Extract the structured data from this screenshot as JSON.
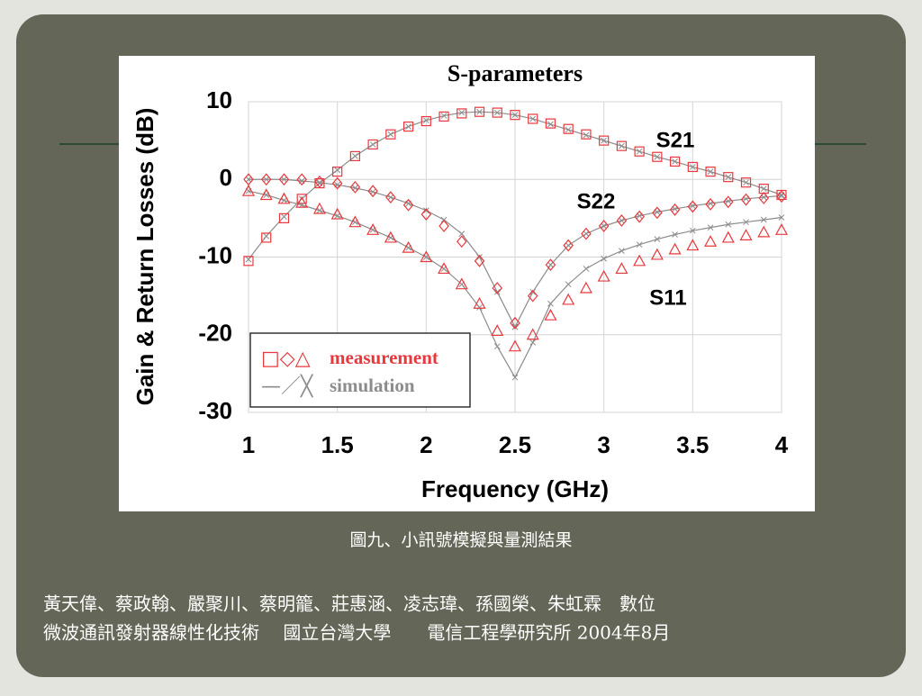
{
  "chart_data": {
    "type": "line",
    "title": "S-parameters",
    "x_label": "Frequency (GHz)",
    "y_label": "Gain & Return Losses (dB)",
    "x": [
      1.0,
      1.1,
      1.2,
      1.3,
      1.4,
      1.5,
      1.6,
      1.7,
      1.8,
      1.9,
      2.0,
      2.1,
      2.2,
      2.3,
      2.4,
      2.5,
      2.6,
      2.7,
      2.8,
      2.9,
      3.0,
      3.1,
      3.2,
      3.3,
      3.4,
      3.5,
      3.6,
      3.7,
      3.8,
      3.9,
      4.0
    ],
    "series": [
      {
        "name": "S21",
        "marker": "square",
        "measurement": [
          -10.5,
          -7.5,
          -5,
          -2.5,
          -0.5,
          1,
          3,
          4.5,
          5.8,
          6.8,
          7.5,
          8.1,
          8.5,
          8.7,
          8.6,
          8.3,
          7.8,
          7.2,
          6.5,
          5.8,
          5.0,
          4.3,
          3.6,
          2.9,
          2.3,
          1.6,
          1.0,
          0.3,
          -0.4,
          -1.2,
          -2.0
        ],
        "simulation": [
          -10.3,
          -7.3,
          -4.8,
          -2.5,
          -0.5,
          1.2,
          3,
          4.5,
          5.8,
          6.8,
          7.6,
          8.2,
          8.6,
          8.7,
          8.6,
          8.3,
          7.8,
          7.1,
          6.4,
          5.7,
          5.0,
          4.3,
          3.6,
          2.9,
          2.3,
          1.6,
          1.0,
          0.3,
          -0.4,
          -1.2,
          -2.0
        ]
      },
      {
        "name": "S22",
        "marker": "diamond",
        "measurement": [
          0,
          0,
          0,
          0,
          -0.3,
          -0.5,
          -1,
          -1.5,
          -2.3,
          -3.3,
          -4.5,
          -6,
          -8,
          -10.5,
          -14,
          -18.5,
          -15,
          -11,
          -8.5,
          -7,
          -6,
          -5.3,
          -4.8,
          -4.3,
          -3.9,
          -3.5,
          -3.2,
          -2.9,
          -2.6,
          -2.4,
          -2.2
        ],
        "simulation": [
          0,
          0,
          0,
          -0.2,
          -0.4,
          -0.7,
          -1.1,
          -1.6,
          -2.3,
          -3.1,
          -4,
          -5.2,
          -7,
          -10,
          -14.5,
          -19,
          -14.5,
          -11,
          -8.5,
          -7,
          -6,
          -5.3,
          -4.7,
          -4.2,
          -3.8,
          -3.4,
          -3.1,
          -2.8,
          -2.5,
          -2.3,
          -2.1
        ]
      },
      {
        "name": "S11",
        "marker": "triangle",
        "measurement": [
          -1.5,
          -2,
          -2.5,
          -3,
          -3.8,
          -4.5,
          -5.5,
          -6.5,
          -7.5,
          -8.8,
          -10,
          -11.5,
          -13.5,
          -16,
          -19.5,
          -21.5,
          -20,
          -17.5,
          -15.5,
          -14,
          -12.5,
          -11.5,
          -10.5,
          -9.7,
          -9,
          -8.5,
          -8,
          -7.5,
          -7.2,
          -6.8,
          -6.5
        ],
        "simulation": [
          -1.5,
          -2,
          -2.7,
          -3.3,
          -4,
          -4.7,
          -5.5,
          -6.5,
          -7.5,
          -8.8,
          -10,
          -11.5,
          -13.5,
          -16.5,
          -21.5,
          -25.5,
          -21,
          -16,
          -13.5,
          -11.5,
          -10.2,
          -9.2,
          -8.4,
          -7.7,
          -7.1,
          -6.6,
          -6.2,
          -5.8,
          -5.5,
          -5.2,
          -4.9
        ]
      }
    ],
    "legend": [
      {
        "symbols": "□◇△",
        "label": "measurement",
        "color": "#e8383d"
      },
      {
        "symbols": "—／╳",
        "label": "simulation",
        "color": "#8c8c8c"
      }
    ],
    "xlim": [
      1,
      4
    ],
    "ylim": [
      -30,
      10
    ],
    "xticks": [
      1,
      1.5,
      2,
      2.5,
      3,
      3.5,
      4
    ],
    "yticks": [
      -30,
      -20,
      -10,
      0,
      10
    ],
    "grid": true
  },
  "caption": "圖九、小訊號模擬與量測結果",
  "citation": [
    "黃天偉、蔡政翰、嚴聚川、蔡明籠、莊惠涵、凌志瑋、孫國榮、朱虹霖　數位",
    "微波通訊發射器線性化技術　 國立台灣大學　　電信工程學研究所 2004年8月"
  ]
}
